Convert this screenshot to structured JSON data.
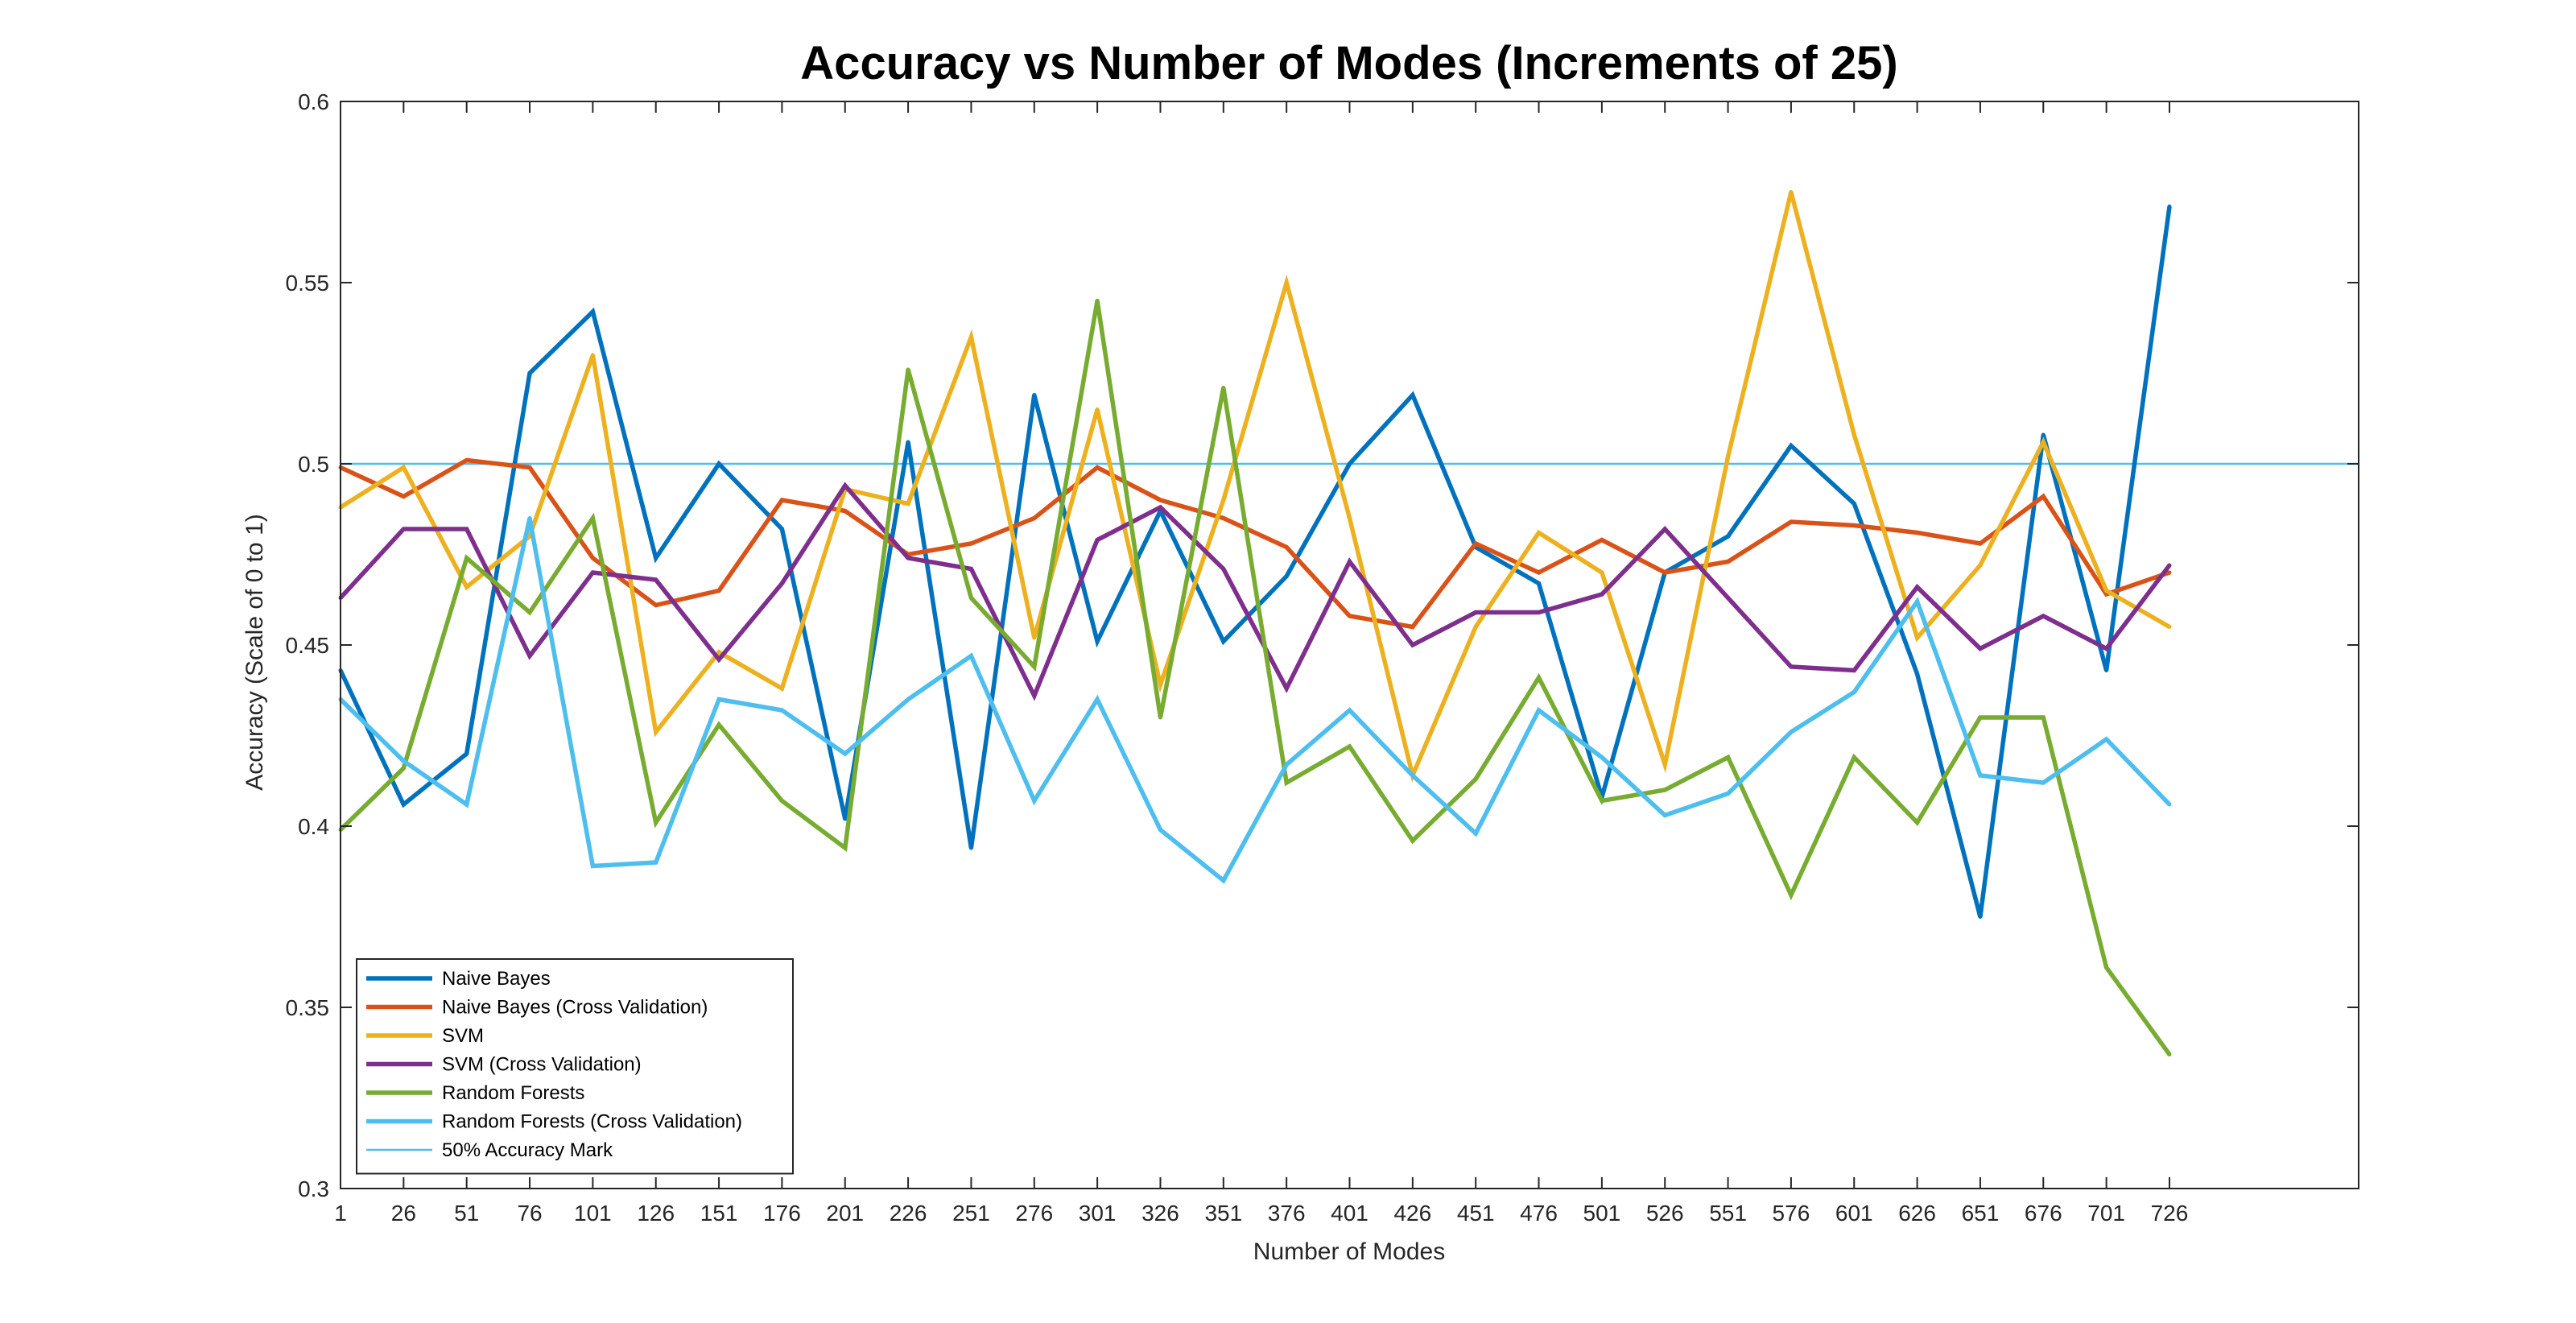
{
  "chart_data": {
    "type": "line",
    "title": "Accuracy vs Number of Modes (Increments of 25)",
    "xlabel": "Number of Modes",
    "ylabel": "Accuracy (Scale of 0 to 1)",
    "x": [
      1,
      26,
      51,
      76,
      101,
      126,
      151,
      176,
      201,
      226,
      251,
      276,
      301,
      326,
      351,
      376,
      401,
      426,
      451,
      476,
      501,
      526,
      551,
      576,
      601,
      626,
      651,
      676,
      701,
      726
    ],
    "x_tick_labels": [
      "1",
      "26",
      "51",
      "76",
      "101",
      "126",
      "151",
      "176",
      "201",
      "226",
      "251",
      "276",
      "301",
      "326",
      "351",
      "376",
      "401",
      "426",
      "451",
      "476",
      "501",
      "526",
      "551",
      "576",
      "601",
      "626",
      "651",
      "676",
      "701",
      "726"
    ],
    "xlim": [
      1,
      801
    ],
    "ylim": [
      0.3,
      0.6
    ],
    "y_ticks": [
      0.3,
      0.35,
      0.4,
      0.45,
      0.5,
      0.55,
      0.6
    ],
    "y_tick_labels": [
      "0.3",
      "0.35",
      "0.4",
      "0.45",
      "0.5",
      "0.55",
      "0.6"
    ],
    "grid": false,
    "legend_position": "bottom-left",
    "series": [
      {
        "name": "Naive Bayes",
        "color": "#0072BD",
        "values": [
          0.443,
          0.406,
          0.42,
          0.525,
          0.542,
          0.474,
          0.5,
          0.482,
          0.402,
          0.506,
          0.394,
          0.519,
          0.451,
          0.487,
          0.451,
          0.469,
          0.5,
          0.519,
          0.477,
          0.467,
          0.408,
          0.47,
          0.48,
          0.505,
          0.489,
          0.442,
          0.375,
          0.508,
          0.443,
          0.571
        ]
      },
      {
        "name": "Naive Bayes (Cross Validation)",
        "color": "#D95319",
        "values": [
          0.499,
          0.491,
          0.501,
          0.499,
          0.474,
          0.461,
          0.465,
          0.49,
          0.487,
          0.475,
          0.478,
          0.485,
          0.499,
          0.49,
          0.485,
          0.477,
          0.458,
          0.455,
          0.478,
          0.47,
          0.479,
          0.47,
          0.473,
          0.484,
          0.483,
          0.481,
          0.478,
          0.491,
          0.464,
          0.47
        ]
      },
      {
        "name": "SVM",
        "color": "#EDB120",
        "values": [
          0.488,
          0.499,
          0.466,
          0.48,
          0.53,
          0.426,
          0.448,
          0.438,
          0.493,
          0.489,
          0.535,
          0.452,
          0.515,
          0.439,
          0.49,
          0.55,
          0.485,
          0.414,
          0.455,
          0.481,
          0.47,
          0.417,
          0.502,
          0.575,
          0.508,
          0.452,
          0.472,
          0.506,
          0.465,
          0.455
        ]
      },
      {
        "name": "SVM (Cross Validation)",
        "color": "#7E2F8E",
        "values": [
          0.463,
          0.482,
          0.482,
          0.447,
          0.47,
          0.468,
          0.446,
          0.467,
          0.494,
          0.474,
          0.471,
          0.436,
          0.479,
          0.488,
          0.471,
          0.438,
          0.473,
          0.45,
          0.459,
          0.459,
          0.464,
          0.482,
          0.463,
          0.444,
          0.443,
          0.466,
          0.449,
          0.458,
          0.449,
          0.472
        ]
      },
      {
        "name": "Random Forests",
        "color": "#77AC30",
        "values": [
          0.399,
          0.416,
          0.474,
          0.459,
          0.485,
          0.401,
          0.428,
          0.407,
          0.394,
          0.526,
          0.463,
          0.444,
          0.545,
          0.43,
          0.521,
          0.412,
          0.422,
          0.396,
          0.413,
          0.441,
          0.407,
          0.41,
          0.419,
          0.381,
          0.419,
          0.401,
          0.43,
          0.43,
          0.361,
          0.337
        ]
      },
      {
        "name": "Random Forests (Cross Validation)",
        "color": "#4DBEEE",
        "values": [
          0.435,
          0.418,
          0.406,
          0.485,
          0.389,
          0.39,
          0.435,
          0.432,
          0.42,
          0.435,
          0.447,
          0.407,
          0.435,
          0.399,
          0.385,
          0.417,
          0.432,
          0.414,
          0.398,
          0.432,
          0.419,
          0.403,
          0.409,
          0.426,
          0.437,
          0.462,
          0.414,
          0.412,
          0.424,
          0.406
        ]
      }
    ],
    "reference_line": {
      "name": "50% Accuracy Mark",
      "y": 0.5,
      "color": "#4DBEEE"
    }
  }
}
